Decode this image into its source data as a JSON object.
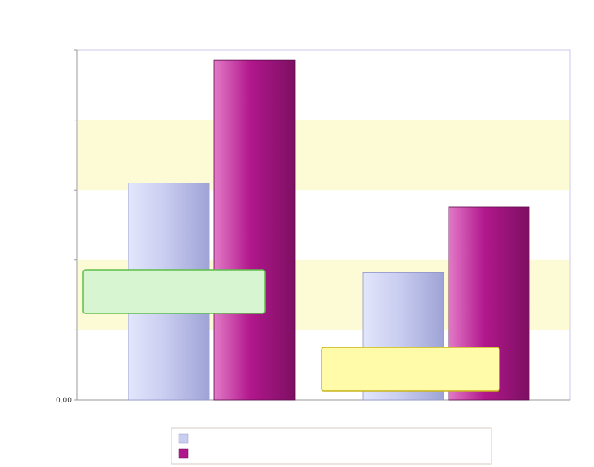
{
  "chart_data": {
    "type": "bar",
    "title_lines": [
      "",
      ""
    ],
    "categories": [
      "",
      ""
    ],
    "series": [
      {
        "name": "",
        "values": [
          155000,
          91000
        ]
      },
      {
        "name": "",
        "values": [
          243000,
          138000
        ]
      }
    ],
    "value_labels": [
      [
        "",
        ""
      ],
      [
        "",
        ""
      ]
    ],
    "ylim": [
      0,
      250000
    ],
    "yticks": [
      0,
      50000,
      100000,
      150000,
      200000,
      250000
    ],
    "ytick_labels": [
      "0,00",
      "",
      "",
      "",
      "",
      ""
    ],
    "annotations": [
      {
        "text": "",
        "value": ""
      },
      {
        "text": "",
        "value": ""
      }
    ],
    "legend_position": "bottom",
    "background_bands": true,
    "grid": false
  },
  "colors": {
    "series_1": "#c9cdf0",
    "series_2": "#b1178c",
    "band": "#fdfbd6",
    "plot_border": "#c8c8e8",
    "annotation_1_fill": "#d6f5d0",
    "annotation_1_border": "#5cbf4a",
    "annotation_2_fill": "#fffba8",
    "annotation_2_border": "#c8b418"
  }
}
